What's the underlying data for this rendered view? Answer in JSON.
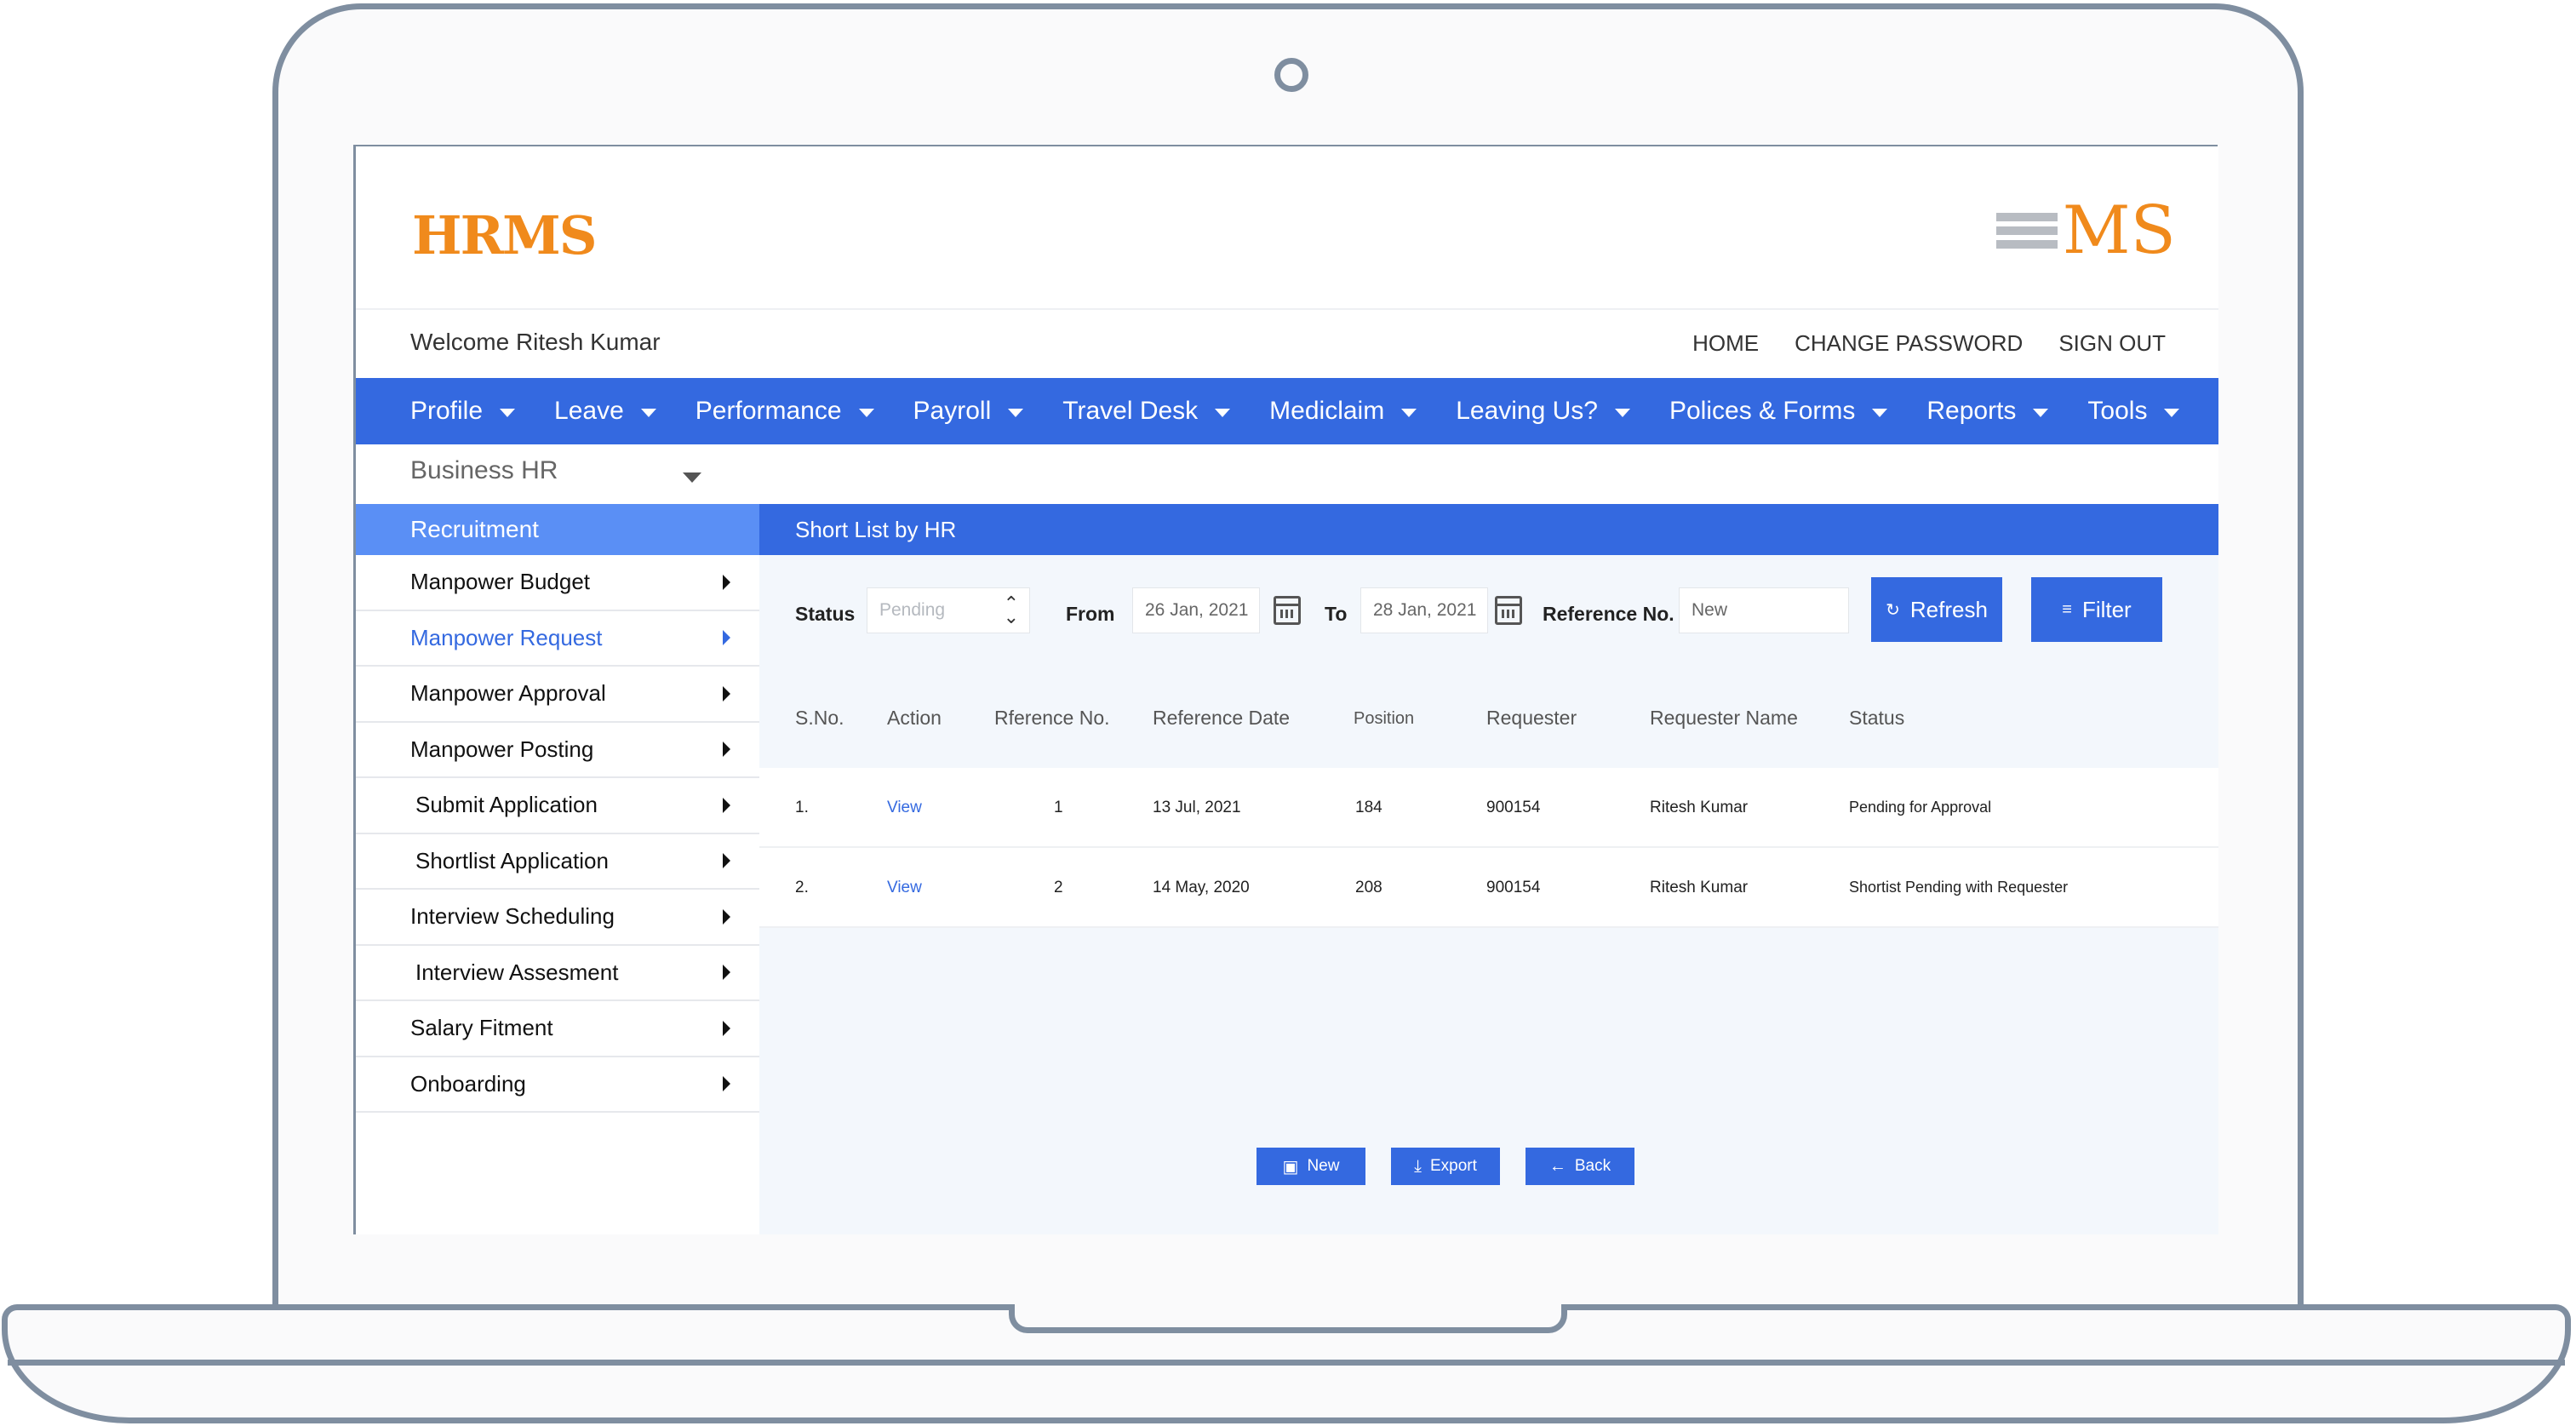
{
  "brand": {
    "left_logo": "HRMS",
    "right_logo": "MS",
    "accent": "#3469e0",
    "logo_color": "#f08a1c"
  },
  "welcome": "Welcome Ritesh Kumar",
  "toplinks": [
    "HOME",
    "CHANGE PASSWORD",
    "SIGN OUT"
  ],
  "mainnav": [
    "Profile",
    "Leave",
    "Performance",
    "Payroll",
    "Travel Desk",
    "Mediclaim",
    "Leaving Us?",
    "Polices & Forms",
    "Reports",
    "Tools"
  ],
  "business_select": "Business HR",
  "sidebar": {
    "title": "Recruitment",
    "items": [
      "Manpower Budget",
      "Manpower Request",
      "Manpower Approval",
      "Manpower Posting",
      "Submit Application",
      "Shortlist Application",
      "Interview Scheduling",
      "Interview Assesment",
      "Salary Fitment",
      "Onboarding"
    ],
    "active": "Manpower Request"
  },
  "content": {
    "title": "Short List by HR",
    "filters": {
      "status_label": "Status",
      "status_value": "Pending",
      "from_label": "From",
      "from_value": "26 Jan, 2021",
      "to_label": "To",
      "to_value": "28 Jan, 2021",
      "ref_label": "Reference No.",
      "ref_value": "New",
      "refresh": "Refresh",
      "filter": "Filter"
    },
    "columns": [
      "S.No.",
      "Action",
      "Rference No.",
      "Reference Date",
      "Position",
      "Requester",
      "Requester Name",
      "Status"
    ],
    "rows": [
      {
        "sno": "1.",
        "action": "View",
        "ref": "1",
        "date": "13 Jul, 2021",
        "position": "184",
        "requester": "900154",
        "name": "Ritesh Kumar",
        "status": "Pending for Approval"
      },
      {
        "sno": "2.",
        "action": "View",
        "ref": "2",
        "date": "14 May, 2020",
        "position": "208",
        "requester": "900154",
        "name": "Ritesh Kumar",
        "status": "Shortist Pending with Requester"
      }
    ],
    "buttons": {
      "new": "New",
      "export": "Export",
      "back": "Back"
    }
  }
}
